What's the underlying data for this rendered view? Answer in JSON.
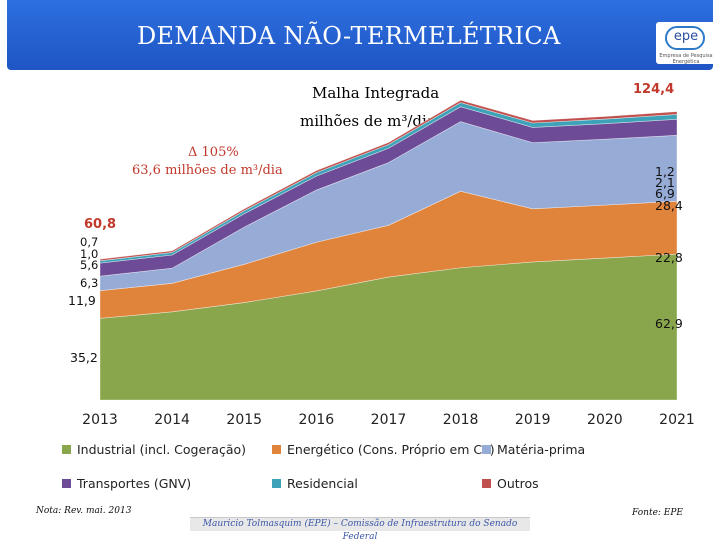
{
  "slide_title": "DEMANDA NÃO-TERMELÉTRICA",
  "logo": {
    "text": "epe",
    "subtext": "Empresa de Pesquisa Energética"
  },
  "subtitle": {
    "line1": "Malha Integrada",
    "line2": "milhões de m³/dia"
  },
  "growth": {
    "line1": "Δ 105%",
    "line2": "63,6 milhões de m³/dia"
  },
  "note": "Nota: Rev. mai. 2013",
  "source": "Fonte: EPE",
  "footer": "Mauricio Tolmasquim (EPE) – Comissão de Infraestrutura do Senado Federal",
  "legend": [
    {
      "label": "Industrial (incl. Cogeração)",
      "color": "#8aa64d"
    },
    {
      "label": "Energético (Cons. Próprio em CT)",
      "color": "#e0833b"
    },
    {
      "label": "Matéria-prima",
      "color": "#96abd6"
    },
    {
      "label": "Transportes (GNV)",
      "color": "#6e4b96"
    },
    {
      "label": "Residencial",
      "color": "#3ea3b8"
    },
    {
      "label": "Outros",
      "color": "#c0504d"
    }
  ],
  "chart_data": {
    "type": "area",
    "stacked": true,
    "categories": [
      "2013",
      "2014",
      "2015",
      "2016",
      "2017",
      "2018",
      "2019",
      "2020",
      "2021"
    ],
    "series": [
      {
        "name": "Industrial (incl. Cogeração)",
        "color": "#8aa64d",
        "values": [
          35.2,
          38.0,
          42.0,
          47.0,
          53.0,
          57.0,
          59.5,
          61.2,
          62.9
        ]
      },
      {
        "name": "Energético (Cons. Próprio em CT)",
        "color": "#e0833b",
        "values": [
          11.9,
          12.3,
          16.5,
          21.0,
          22.3,
          33.0,
          22.9,
          22.8,
          22.8
        ]
      },
      {
        "name": "Matéria-prima",
        "color": "#96abd6",
        "values": [
          6.3,
          6.5,
          16.0,
          22.5,
          27.0,
          30.0,
          28.5,
          28.4,
          28.4
        ]
      },
      {
        "name": "Transportes (GNV)",
        "color": "#6e4b96",
        "values": [
          5.6,
          5.7,
          5.8,
          6.0,
          6.2,
          6.4,
          6.6,
          6.7,
          6.9
        ]
      },
      {
        "name": "Residencial",
        "color": "#3ea3b8",
        "values": [
          1.0,
          1.1,
          1.3,
          1.5,
          1.6,
          1.8,
          1.9,
          2.0,
          2.1
        ]
      },
      {
        "name": "Outros",
        "color": "#c0504d",
        "values": [
          0.7,
          0.7,
          0.8,
          0.9,
          0.9,
          1.0,
          1.1,
          1.1,
          1.2
        ]
      }
    ],
    "total_labels": {
      "first": "60,8",
      "last": "124,4"
    },
    "start_labels": [
      "35,2",
      "11,9",
      "6,3",
      "5,6",
      "1,0",
      "0,7"
    ],
    "end_labels": [
      "62,9",
      "22,8",
      "28,4",
      "6,9",
      "2,1",
      "1,2"
    ],
    "ylim": [
      0,
      130
    ]
  }
}
